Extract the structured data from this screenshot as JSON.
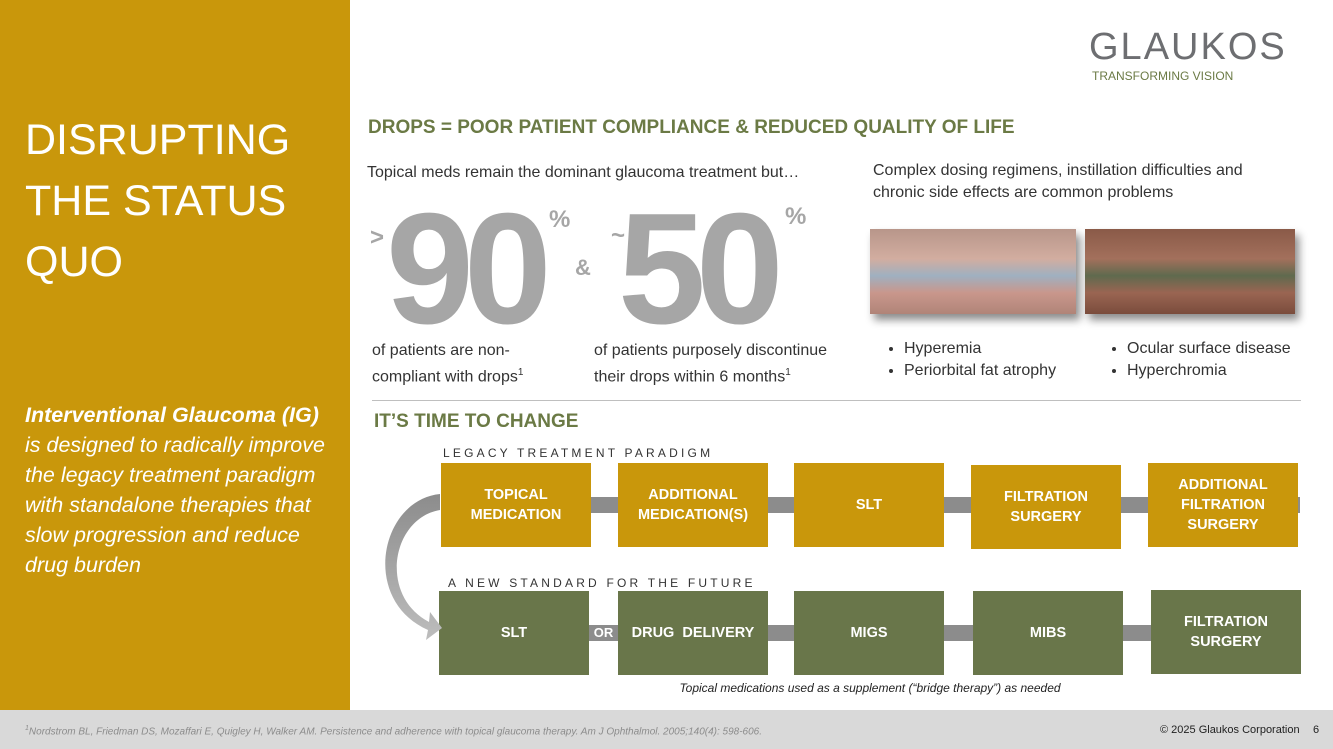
{
  "sidebar": {
    "title": "DISRUPTING THE STATUS QUO",
    "lead": "Interventional Glaucoma (IG)",
    "body": "is designed to radically improve the legacy treatment paradigm with standalone therapies that slow progression and reduce drug burden"
  },
  "logo": {
    "name": "GLAUKOS",
    "tagline": "TRANSFORMING VISION"
  },
  "drops": {
    "heading": "DROPS = POOR PATIENT COMPLIANCE & REDUCED QUALITY OF LIFE",
    "intro": "Topical meds remain the dominant glaucoma treatment but…",
    "stats": [
      {
        "prefix": ">",
        "number": 90,
        "unit": "%",
        "caption": "of patients are non-compliant with drops",
        "note": "1"
      },
      {
        "prefix": "~",
        "number": 50,
        "unit": "%",
        "caption": "of patients purposely discontinue their drops within 6 months",
        "note": "1"
      }
    ],
    "joiner": "&",
    "problems": "Complex dosing regimens, instillation difficulties and chronic side effects are common problems",
    "bullets": [
      [
        "Hyperemia",
        "Periorbital fat atrophy"
      ],
      [
        "Ocular surface disease",
        "Hyperchromia"
      ]
    ]
  },
  "change": {
    "heading": "IT’S TIME TO CHANGE",
    "legacy_label": "LEGACY TREATMENT PARADIGM",
    "legacy_steps": [
      "TOPICAL MEDICATION",
      "ADDITIONAL MEDICATION(S)",
      "SLT",
      "FILTRATION SURGERY",
      "ADDITIONAL FILTRATION SURGERY"
    ],
    "future_label": "A NEW STANDARD FOR THE FUTURE",
    "future_steps": [
      "SLT",
      "DRUG  DELIVERY",
      "MIGS",
      "MIBS",
      "FILTRATION SURGERY"
    ],
    "or": "OR",
    "note": "Topical medications used as a supplement (“bridge therapy”) as needed"
  },
  "footer": {
    "marker": "1",
    "reference": "Nordstrom BL, Friedman DS, Mozaffari E, Quigley H, Walker AM. Persistence and adherence with topical glaucoma therapy. Am J Ophthalmol. 2005;140(4): 598-606.",
    "copyright": "© 2025 Glaukos Corporation",
    "page": 6
  }
}
